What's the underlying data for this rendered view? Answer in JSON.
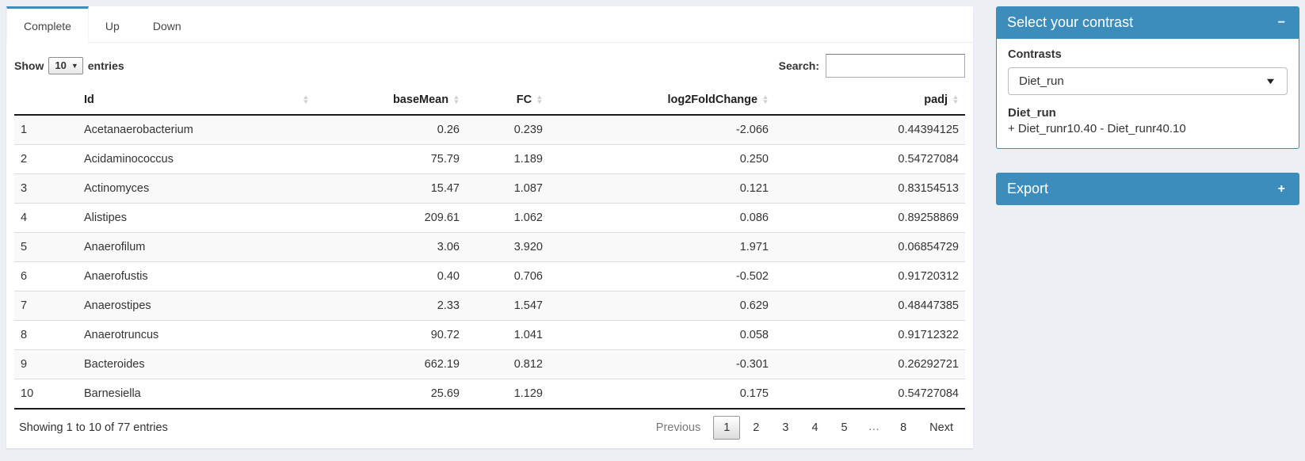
{
  "colors": {
    "accent": "#3c8dbc",
    "page_bg": "#ecf0f5"
  },
  "tabs": [
    {
      "label": "Complete",
      "active": true
    },
    {
      "label": "Up",
      "active": false
    },
    {
      "label": "Down",
      "active": false
    }
  ],
  "table_controls": {
    "show_label": "Show",
    "page_length": "10",
    "entries_label": "entries",
    "search_label": "Search:",
    "search_value": ""
  },
  "table": {
    "columns": [
      {
        "label": "",
        "sortable": false
      },
      {
        "label": "Id",
        "sortable": true
      },
      {
        "label": "baseMean",
        "sortable": true
      },
      {
        "label": "FC",
        "sortable": true
      },
      {
        "label": "log2FoldChange",
        "sortable": true
      },
      {
        "label": "padj",
        "sortable": true
      }
    ],
    "rows": [
      [
        "1",
        "Acetanaerobacterium",
        "0.26",
        "0.239",
        "-2.066",
        "0.44394125"
      ],
      [
        "2",
        "Acidaminococcus",
        "75.79",
        "1.189",
        "0.250",
        "0.54727084"
      ],
      [
        "3",
        "Actinomyces",
        "15.47",
        "1.087",
        "0.121",
        "0.83154513"
      ],
      [
        "4",
        "Alistipes",
        "209.61",
        "1.062",
        "0.086",
        "0.89258869"
      ],
      [
        "5",
        "Anaerofilum",
        "3.06",
        "3.920",
        "1.971",
        "0.06854729"
      ],
      [
        "6",
        "Anaerofustis",
        "0.40",
        "0.706",
        "-0.502",
        "0.91720312"
      ],
      [
        "7",
        "Anaerostipes",
        "2.33",
        "1.547",
        "0.629",
        "0.48447385"
      ],
      [
        "8",
        "Anaerotruncus",
        "90.72",
        "1.041",
        "0.058",
        "0.91712322"
      ],
      [
        "9",
        "Bacteroides",
        "662.19",
        "0.812",
        "-0.301",
        "0.26292721"
      ],
      [
        "10",
        "Barnesiella",
        "25.69",
        "1.129",
        "0.175",
        "0.54727084"
      ]
    ],
    "info": "Showing 1 to 10 of 77 entries",
    "pagination": {
      "previous": "Previous",
      "pages": [
        "1",
        "2",
        "3",
        "4",
        "5",
        "…",
        "8"
      ],
      "current": "1",
      "next": "Next"
    }
  },
  "contrast_panel": {
    "title": "Select your contrast",
    "collapse_icon": "−",
    "contrasts_label": "Contrasts",
    "selected_contrast": "Diet_run",
    "detail_name": "Diet_run",
    "detail_formula": "+ Diet_runr10.40 - Diet_runr40.10"
  },
  "export_panel": {
    "title": "Export",
    "expand_icon": "+"
  }
}
